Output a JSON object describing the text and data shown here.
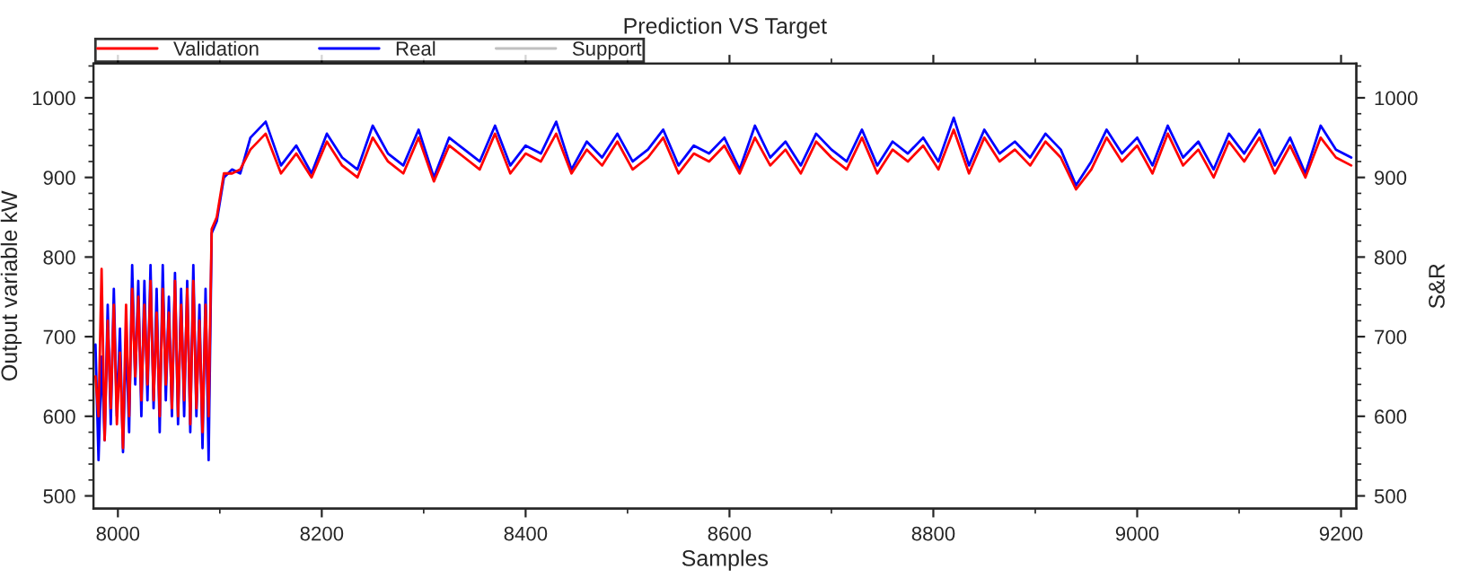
{
  "chart_data": {
    "type": "line",
    "title": "Prediction VS Target",
    "xlabel": "Samples",
    "ylabel": "Output variable kW",
    "y2label": "S&R",
    "x": [
      7978,
      7981,
      7984,
      7987,
      7990,
      7993,
      7996,
      7999,
      8002,
      8005,
      8008,
      8011,
      8014,
      8017,
      8020,
      8023,
      8026,
      8029,
      8032,
      8035,
      8038,
      8041,
      8044,
      8047,
      8050,
      8053,
      8056,
      8059,
      8062,
      8065,
      8068,
      8071,
      8074,
      8077,
      8080,
      8083,
      8086,
      8089,
      8092,
      8097,
      8104,
      8112,
      8120,
      8130,
      8145,
      8160,
      8175,
      8190,
      8205,
      8220,
      8235,
      8250,
      8265,
      8280,
      8295,
      8310,
      8325,
      8340,
      8355,
      8370,
      8385,
      8400,
      8415,
      8430,
      8445,
      8460,
      8475,
      8490,
      8505,
      8520,
      8535,
      8550,
      8565,
      8580,
      8595,
      8610,
      8625,
      8640,
      8655,
      8670,
      8685,
      8700,
      8715,
      8730,
      8745,
      8760,
      8775,
      8790,
      8805,
      8820,
      8835,
      8850,
      8865,
      8880,
      8895,
      8910,
      8925,
      8940,
      8955,
      8970,
      8985,
      9000,
      9015,
      9030,
      9045,
      9060,
      9075,
      9090,
      9105,
      9120,
      9135,
      9150,
      9165,
      9180,
      9195,
      9210
    ],
    "series": [
      {
        "name": "Validation",
        "color": "#ff0000",
        "values": [
          650,
          600,
          785,
          570,
          720,
          610,
          740,
          590,
          680,
          560,
          740,
          600,
          760,
          650,
          750,
          620,
          740,
          640,
          770,
          620,
          730,
          600,
          760,
          640,
          730,
          610,
          770,
          600,
          740,
          620,
          760,
          590,
          770,
          610,
          720,
          580,
          740,
          600,
          835,
          850,
          905,
          905,
          910,
          935,
          955,
          905,
          930,
          900,
          945,
          915,
          900,
          950,
          920,
          905,
          950,
          895,
          940,
          925,
          910,
          955,
          905,
          930,
          920,
          955,
          905,
          935,
          915,
          945,
          910,
          925,
          950,
          905,
          930,
          920,
          940,
          905,
          950,
          915,
          935,
          905,
          945,
          925,
          910,
          950,
          905,
          935,
          920,
          940,
          910,
          960,
          905,
          950,
          920,
          935,
          915,
          945,
          925,
          885,
          910,
          950,
          920,
          940,
          905,
          955,
          915,
          935,
          900,
          945,
          920,
          950,
          905,
          940,
          900,
          950,
          925,
          915
        ]
      },
      {
        "name": "Real",
        "color": "#0000ff",
        "values": [
          690,
          545,
          675,
          570,
          740,
          590,
          760,
          600,
          710,
          555,
          700,
          580,
          790,
          640,
          770,
          600,
          770,
          620,
          790,
          610,
          760,
          580,
          790,
          620,
          750,
          600,
          780,
          590,
          760,
          600,
          770,
          580,
          790,
          600,
          740,
          560,
          760,
          545,
          830,
          845,
          900,
          910,
          905,
          950,
          970,
          915,
          940,
          905,
          955,
          925,
          910,
          965,
          930,
          915,
          960,
          900,
          950,
          935,
          920,
          965,
          915,
          940,
          930,
          970,
          910,
          945,
          925,
          955,
          920,
          935,
          960,
          915,
          940,
          930,
          950,
          910,
          965,
          925,
          945,
          915,
          955,
          935,
          920,
          960,
          915,
          945,
          930,
          950,
          920,
          975,
          915,
          960,
          930,
          945,
          925,
          955,
          935,
          890,
          920,
          960,
          930,
          950,
          915,
          965,
          925,
          945,
          910,
          955,
          930,
          960,
          915,
          950,
          905,
          965,
          935,
          925
        ]
      },
      {
        "name": "Support",
        "color": "#c0c0c0",
        "values": [
          null,
          null,
          null,
          null,
          null,
          null,
          null,
          null,
          null,
          null,
          null,
          null,
          null,
          null,
          null,
          null,
          null,
          null,
          null,
          null,
          null,
          null,
          null,
          null,
          null,
          null,
          null,
          null,
          null,
          null,
          null,
          null,
          null,
          null,
          null,
          null,
          null,
          null,
          null,
          null,
          null,
          null,
          null,
          null,
          null,
          null,
          null,
          null,
          null,
          null,
          null,
          null,
          null,
          null,
          null,
          null,
          null,
          null,
          null,
          null,
          null,
          null,
          null,
          null,
          null,
          null,
          null,
          null,
          null,
          null,
          null,
          null,
          null,
          null,
          null,
          null,
          null,
          null,
          null,
          null,
          null,
          null,
          null,
          null,
          null,
          null,
          null,
          null,
          null,
          null,
          null,
          null,
          null,
          null,
          null,
          null,
          null,
          null,
          null,
          null,
          null,
          null,
          null,
          null,
          null,
          null,
          null,
          null,
          null,
          null,
          null,
          null,
          null,
          null,
          null,
          null
        ]
      }
    ],
    "xlim": [
      7976,
      9215
    ],
    "xticks": [
      8000,
      8200,
      8400,
      8600,
      8800,
      9000,
      9200
    ],
    "ylim": [
      484,
      1043
    ],
    "yticks": [
      500,
      600,
      700,
      800,
      900,
      1000
    ],
    "y2lim": [
      484,
      1043
    ],
    "y2ticks": [
      500,
      600,
      700,
      800,
      900,
      1000
    ],
    "legend": "top left",
    "grid": false,
    "marker": "none",
    "line_style": "solid"
  }
}
